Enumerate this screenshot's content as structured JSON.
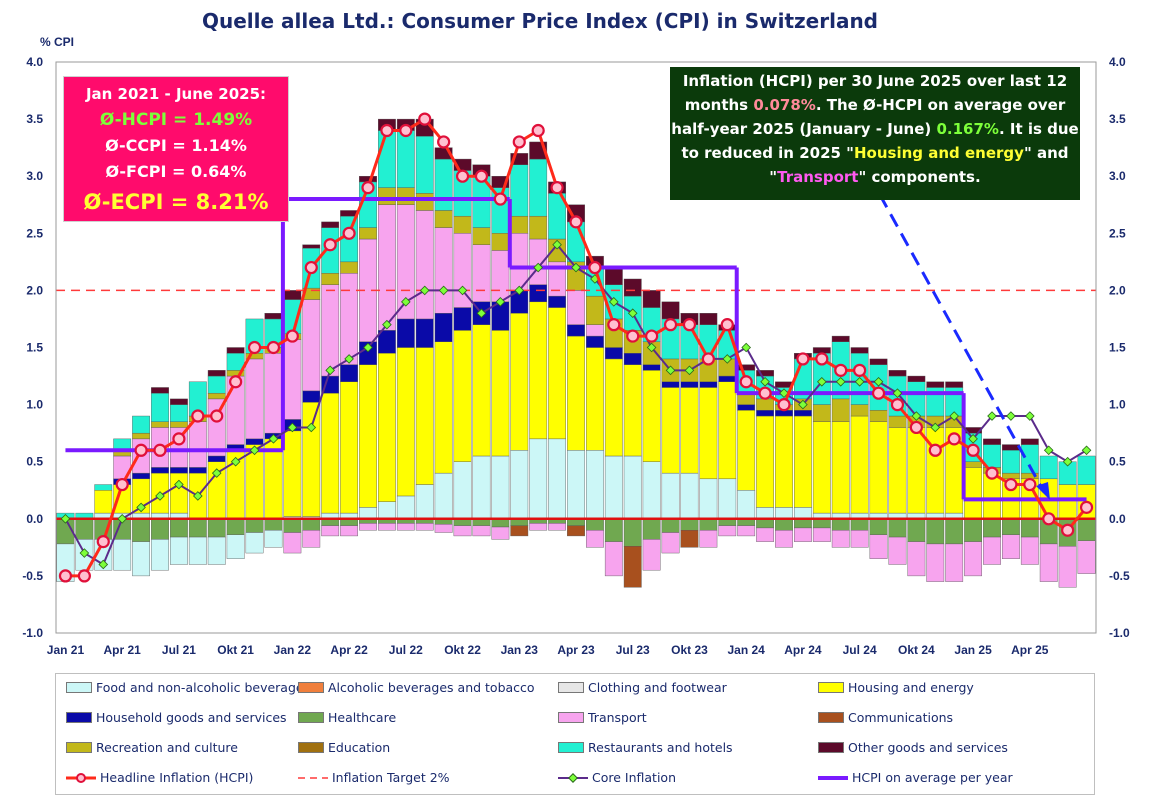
{
  "title": "Quelle allea Ltd.: Consumer Price Index (CPI) in Switzerland",
  "y_unit": "% CPI",
  "colors": {
    "food": "#ccf7f7",
    "alcohol": "#f07f3c",
    "clothing": "#e6e6e6",
    "housing": "#ffff00",
    "household": "#0a0aa8",
    "health": "#70a850",
    "transport": "#f7a4ee",
    "comm": "#a8501e",
    "recreation": "#c2b81a",
    "education": "#a07010",
    "restaurants": "#22f0d2",
    "other": "#5c0a2a",
    "headline": "#ff2a1a",
    "target": "#ff3a3a",
    "core": "#5b2b8b",
    "avg": "#7a1aff",
    "arrow": "#1a2aff"
  },
  "box_left": {
    "period": "Jan 2021 - June 2025:",
    "hcpi": "Ø-HCPI  = 1.49%",
    "ccpi": "Ø-CCPI = 1.14%",
    "fcpi": "Ø-FCPI = 0.64%",
    "ecpi": "Ø-ECPI  = 8.21%"
  },
  "box_right": {
    "t1": "Inflation (HCPI) per 30 June 2025 over last 12 months ",
    "v1": "0.078%",
    "t2": ".   The Ø-HCPI on average over half-year 2025 (January - June) ",
    "v2": "0.167%",
    "t3": ". It is due to reduced in 2025  \"",
    "c1": "Housing and energy",
    "t4": "\" and \"",
    "c2": "Transport",
    "t5": "\" components."
  },
  "legend": [
    {
      "key": "food",
      "label": "Food and non-alcoholic beverages",
      "kind": "bar"
    },
    {
      "key": "alcohol",
      "label": "Alcoholic beverages and tobacco",
      "kind": "bar"
    },
    {
      "key": "clothing",
      "label": "Clothing and footwear",
      "kind": "bar"
    },
    {
      "key": "housing",
      "label": "Housing and energy",
      "kind": "bar"
    },
    {
      "key": "household",
      "label": "Household goods and services",
      "kind": "bar"
    },
    {
      "key": "health",
      "label": "Healthcare",
      "kind": "bar"
    },
    {
      "key": "transport",
      "label": "Transport",
      "kind": "bar"
    },
    {
      "key": "comm",
      "label": "Communications",
      "kind": "bar"
    },
    {
      "key": "recreation",
      "label": "Recreation and culture",
      "kind": "bar"
    },
    {
      "key": "education",
      "label": "Education",
      "kind": "bar"
    },
    {
      "key": "restaurants",
      "label": "Restaurants and hotels",
      "kind": "bar"
    },
    {
      "key": "other",
      "label": "Other goods and services",
      "kind": "bar"
    },
    {
      "key": "headline",
      "label": "Headline Inflation (HCPI)",
      "kind": "headline"
    },
    {
      "key": "target",
      "label": "Inflation Target 2%",
      "kind": "target"
    },
    {
      "key": "core",
      "label": "Core Inflation",
      "kind": "core"
    },
    {
      "key": "avg",
      "label": "HCPI on average per year",
      "kind": "avg"
    }
  ],
  "chart_data": {
    "type": "bar",
    "ylim": [
      -1.0,
      4.0
    ],
    "yticks": [
      "-1.0",
      "-0.5",
      "0.0",
      "0.5",
      "1.0",
      "1.5",
      "2.0",
      "2.5",
      "3.0",
      "3.5",
      "4.0"
    ],
    "ytick_values": [
      -1.0,
      -0.5,
      0.0,
      0.5,
      1.0,
      1.5,
      2.0,
      2.5,
      3.0,
      3.5,
      4.0
    ],
    "x_labels": [
      {
        "i": 0,
        "label": "Jan 21"
      },
      {
        "i": 3,
        "label": "Apr 21"
      },
      {
        "i": 6,
        "label": "Jul 21"
      },
      {
        "i": 9,
        "label": "Okt 21"
      },
      {
        "i": 12,
        "label": "Jan 22"
      },
      {
        "i": 15,
        "label": "Apr 22"
      },
      {
        "i": 18,
        "label": "Jul 22"
      },
      {
        "i": 21,
        "label": "Okt 22"
      },
      {
        "i": 24,
        "label": "Jan 23"
      },
      {
        "i": 27,
        "label": "Apr 23"
      },
      {
        "i": 30,
        "label": "Jul 23"
      },
      {
        "i": 33,
        "label": "Okt 23"
      },
      {
        "i": 36,
        "label": "Jan 24"
      },
      {
        "i": 39,
        "label": "Apr 24"
      },
      {
        "i": 42,
        "label": "Jul 24"
      },
      {
        "i": 45,
        "label": "Okt 24"
      },
      {
        "i": 48,
        "label": "Jan 25"
      },
      {
        "i": 51,
        "label": "Apr 25"
      }
    ],
    "headline": [
      -0.5,
      -0.5,
      -0.2,
      0.3,
      0.6,
      0.6,
      0.7,
      0.9,
      0.9,
      1.2,
      1.5,
      1.5,
      1.6,
      2.2,
      2.4,
      2.5,
      2.9,
      3.4,
      3.4,
      3.5,
      3.3,
      3.0,
      3.0,
      2.8,
      3.3,
      3.4,
      2.9,
      2.6,
      2.2,
      1.7,
      1.6,
      1.6,
      1.7,
      1.7,
      1.4,
      1.7,
      1.2,
      1.1,
      1.0,
      1.4,
      1.4,
      1.3,
      1.3,
      1.1,
      1.0,
      0.8,
      0.6,
      0.7,
      0.6,
      0.4,
      0.3,
      0.3,
      0.0,
      -0.1,
      0.1
    ],
    "core": [
      0.0,
      -0.3,
      -0.4,
      0.0,
      0.1,
      0.2,
      0.3,
      0.2,
      0.4,
      0.5,
      0.6,
      0.7,
      0.8,
      0.8,
      1.3,
      1.4,
      1.5,
      1.7,
      1.9,
      2.0,
      2.0,
      2.0,
      1.8,
      1.9,
      2.0,
      2.2,
      2.4,
      2.2,
      2.1,
      1.9,
      1.8,
      1.5,
      1.3,
      1.3,
      1.4,
      1.4,
      1.5,
      1.2,
      1.1,
      1.0,
      1.2,
      1.2,
      1.2,
      1.2,
      1.1,
      0.9,
      0.8,
      0.9,
      0.7,
      0.9,
      0.9,
      0.9,
      0.6,
      0.5,
      0.6
    ],
    "target": 2.0,
    "avg_segments": [
      {
        "from": 0,
        "to": 11.5,
        "value": 0.6
      },
      {
        "from": 11.5,
        "to": 23.5,
        "value": 2.8
      },
      {
        "from": 23.5,
        "to": 35.5,
        "value": 2.2
      },
      {
        "from": 35.5,
        "to": 47.5,
        "value": 1.1
      },
      {
        "from": 47.5,
        "to": 54,
        "value": 0.17
      }
    ],
    "positive_totals": [
      0.05,
      0.05,
      0.3,
      0.7,
      0.9,
      1.1,
      1.0,
      1.2,
      1.3,
      1.5,
      1.75,
      1.8,
      2.0,
      2.4,
      2.6,
      2.7,
      3.0,
      3.5,
      3.5,
      3.5,
      3.25,
      3.15,
      3.1,
      3.0,
      3.2,
      3.3,
      2.95,
      2.75,
      2.3,
      2.2,
      2.1,
      2.0,
      1.9,
      1.8,
      1.8,
      1.7,
      1.35,
      1.3,
      1.2,
      1.45,
      1.5,
      1.6,
      1.5,
      1.4,
      1.3,
      1.25,
      1.2,
      1.2,
      0.8,
      0.7,
      0.65,
      0.7,
      0.55,
      0.5,
      0.55
    ],
    "negative_totals": [
      -0.55,
      -0.45,
      -0.45,
      -0.45,
      -0.5,
      -0.45,
      -0.4,
      -0.4,
      -0.4,
      -0.35,
      -0.3,
      -0.25,
      -0.3,
      -0.25,
      -0.15,
      -0.15,
      -0.1,
      -0.1,
      -0.1,
      -0.1,
      -0.12,
      -0.15,
      -0.15,
      -0.18,
      -0.15,
      -0.1,
      -0.1,
      -0.15,
      -0.25,
      -0.5,
      -0.6,
      -0.45,
      -0.3,
      -0.25,
      -0.25,
      -0.15,
      -0.15,
      -0.2,
      -0.25,
      -0.2,
      -0.2,
      -0.25,
      -0.25,
      -0.35,
      -0.4,
      -0.5,
      -0.55,
      -0.55,
      -0.5,
      -0.4,
      -0.35,
      -0.4,
      -0.55,
      -0.6,
      -0.48
    ],
    "composition_positive": {
      "food": [
        0.0,
        0.0,
        0.05,
        0.05,
        0.05,
        0.05,
        0.05,
        0.0,
        0.0,
        0.0,
        0.0,
        0.0,
        0.02,
        0.02,
        0.05,
        0.05,
        0.1,
        0.15,
        0.2,
        0.3,
        0.4,
        0.5,
        0.55,
        0.55,
        0.6,
        0.7,
        0.7,
        0.6,
        0.6,
        0.55,
        0.55,
        0.5,
        0.4,
        0.4,
        0.35,
        0.35,
        0.25,
        0.1,
        0.1,
        0.1,
        0.05,
        0.05,
        0.05,
        0.05,
        0.05,
        0.05,
        0.05,
        0.05,
        0.0,
        0.0,
        0.0,
        0.0,
        0.0,
        0.0,
        0.0
      ],
      "housing": [
        0.0,
        0.0,
        0.2,
        0.25,
        0.3,
        0.35,
        0.35,
        0.4,
        0.5,
        0.6,
        0.65,
        0.7,
        0.75,
        1.0,
        1.05,
        1.15,
        1.25,
        1.3,
        1.3,
        1.2,
        1.15,
        1.15,
        1.15,
        1.1,
        1.2,
        1.2,
        1.15,
        1.0,
        0.9,
        0.85,
        0.8,
        0.8,
        0.75,
        0.75,
        0.8,
        0.85,
        0.7,
        0.8,
        0.8,
        0.8,
        0.8,
        0.8,
        0.85,
        0.8,
        0.75,
        0.75,
        0.75,
        0.75,
        0.45,
        0.4,
        0.35,
        0.35,
        0.35,
        0.3,
        0.3
      ],
      "household": [
        0.0,
        0.0,
        0.0,
        0.05,
        0.05,
        0.05,
        0.05,
        0.05,
        0.05,
        0.05,
        0.05,
        0.05,
        0.1,
        0.1,
        0.15,
        0.15,
        0.2,
        0.2,
        0.25,
        0.25,
        0.25,
        0.2,
        0.2,
        0.25,
        0.2,
        0.15,
        0.1,
        0.1,
        0.1,
        0.1,
        0.1,
        0.05,
        0.05,
        0.05,
        0.05,
        0.05,
        0.05,
        0.05,
        0.05,
        0.05,
        0.0,
        0.0,
        0.0,
        0.0,
        0.0,
        0.0,
        0.0,
        0.0,
        0.0,
        0.0,
        0.0,
        0.0,
        0.0,
        0.0,
        0.0
      ],
      "transport": [
        0.0,
        0.0,
        0.0,
        0.2,
        0.3,
        0.35,
        0.35,
        0.4,
        0.5,
        0.6,
        0.7,
        0.7,
        0.7,
        0.8,
        0.8,
        0.8,
        0.9,
        1.1,
        1.0,
        0.95,
        0.75,
        0.65,
        0.5,
        0.45,
        0.5,
        0.4,
        0.3,
        0.3,
        0.1,
        0.0,
        0.0,
        0.0,
        0.0,
        0.0,
        0.0,
        0.0,
        0.0,
        0.0,
        0.0,
        0.0,
        0.0,
        0.0,
        0.0,
        0.0,
        0.0,
        0.0,
        0.0,
        0.0,
        0.0,
        0.0,
        0.0,
        0.0,
        0.0,
        0.0,
        0.0
      ],
      "recreation": [
        0.0,
        0.0,
        0.0,
        0.05,
        0.05,
        0.05,
        0.05,
        0.05,
        0.05,
        0.05,
        0.05,
        0.05,
        0.05,
        0.1,
        0.1,
        0.1,
        0.1,
        0.15,
        0.15,
        0.15,
        0.15,
        0.15,
        0.15,
        0.15,
        0.15,
        0.2,
        0.2,
        0.25,
        0.25,
        0.25,
        0.2,
        0.2,
        0.2,
        0.2,
        0.2,
        0.15,
        0.1,
        0.1,
        0.05,
        0.1,
        0.15,
        0.2,
        0.1,
        0.1,
        0.1,
        0.1,
        0.1,
        0.1,
        0.05,
        0.05,
        0.05,
        0.05,
        0.0,
        0.0,
        0.0
      ],
      "restaurants": [
        0.05,
        0.05,
        0.05,
        0.1,
        0.15,
        0.25,
        0.15,
        0.3,
        0.15,
        0.15,
        0.3,
        0.25,
        0.3,
        0.35,
        0.4,
        0.4,
        0.4,
        0.5,
        0.5,
        0.5,
        0.45,
        0.4,
        0.45,
        0.4,
        0.45,
        0.5,
        0.4,
        0.35,
        0.25,
        0.3,
        0.3,
        0.3,
        0.35,
        0.3,
        0.3,
        0.25,
        0.2,
        0.2,
        0.15,
        0.35,
        0.45,
        0.5,
        0.45,
        0.4,
        0.35,
        0.3,
        0.25,
        0.25,
        0.25,
        0.2,
        0.2,
        0.25,
        0.2,
        0.2,
        0.25
      ],
      "other": [
        0.0,
        0.0,
        0.0,
        0.0,
        0.0,
        0.05,
        0.05,
        0.0,
        0.05,
        0.05,
        0.0,
        0.05,
        0.08,
        0.03,
        0.05,
        0.05,
        0.05,
        0.1,
        0.1,
        0.15,
        0.1,
        0.1,
        0.1,
        0.1,
        0.1,
        0.15,
        0.1,
        0.15,
        0.1,
        0.15,
        0.15,
        0.15,
        0.15,
        0.1,
        0.1,
        0.05,
        0.05,
        0.05,
        0.05,
        0.05,
        0.05,
        0.05,
        0.05,
        0.05,
        0.05,
        0.05,
        0.05,
        0.05,
        0.05,
        0.05,
        0.05,
        0.05,
        0.0,
        0.0,
        0.0
      ]
    }
  }
}
